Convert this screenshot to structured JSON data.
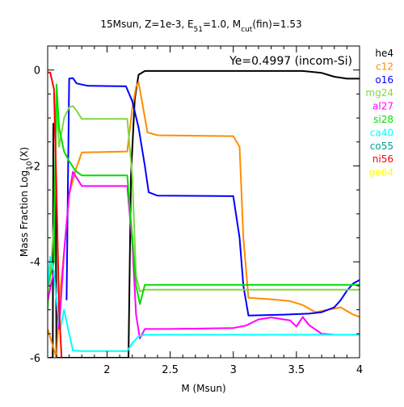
{
  "chart_data": {
    "type": "line",
    "title_parts": [
      "15Msun, Z=1e-3, E",
      "51",
      "=1.0, M",
      "cut",
      "(fin)=1.53"
    ],
    "xlabel": "M (Msun)",
    "ylabel_parts": [
      "Mass Fraction Log",
      "10",
      "(X)"
    ],
    "annotation": "Ye=0.4997 (incom-Si)",
    "xlim": [
      1.53,
      4.0
    ],
    "ylim": [
      -6,
      0.5
    ],
    "xticks": [
      {
        "value": 2,
        "label": "2"
      },
      {
        "value": 2.5,
        "label": "2.5"
      },
      {
        "value": 3,
        "label": "3"
      },
      {
        "value": 3.5,
        "label": "3.5"
      },
      {
        "value": 4,
        "label": "4"
      }
    ],
    "yticks": [
      {
        "value": 0,
        "label": "0"
      },
      {
        "value": -2,
        "label": "-2"
      },
      {
        "value": -4,
        "label": "-4"
      },
      {
        "value": -6,
        "label": "-6"
      }
    ],
    "legend_position": "right, outside plot",
    "series": [
      {
        "name": "he4",
        "color": "#000000",
        "points": [
          [
            1.53,
            -6
          ],
          [
            1.57,
            -6
          ],
          [
            1.575,
            -1.12
          ],
          [
            1.59,
            -1.12
          ],
          [
            1.6,
            -6
          ],
          [
            2.17,
            -6
          ],
          [
            2.19,
            -2.2
          ],
          [
            2.22,
            -0.6
          ],
          [
            2.25,
            -0.1
          ],
          [
            2.3,
            -0.02
          ],
          [
            2.5,
            -0.02
          ],
          [
            3.0,
            -0.02
          ],
          [
            3.55,
            -0.02
          ],
          [
            3.7,
            -0.06
          ],
          [
            3.8,
            -0.14
          ],
          [
            3.9,
            -0.18
          ],
          [
            4.0,
            -0.18
          ]
        ]
      },
      {
        "name": "c12",
        "color": "#ff8c00",
        "points": [
          [
            1.53,
            -5.4
          ],
          [
            1.6,
            -6
          ],
          [
            1.63,
            -4.6
          ],
          [
            1.66,
            -3.8
          ],
          [
            1.7,
            -2.6
          ],
          [
            1.75,
            -2.1
          ],
          [
            1.8,
            -1.72
          ],
          [
            2.16,
            -1.7
          ],
          [
            2.2,
            -0.8
          ],
          [
            2.23,
            -0.35
          ],
          [
            2.25,
            -0.25
          ],
          [
            2.28,
            -0.7
          ],
          [
            2.32,
            -1.3
          ],
          [
            2.4,
            -1.36
          ],
          [
            3.0,
            -1.38
          ],
          [
            3.05,
            -1.6
          ],
          [
            3.08,
            -3.5
          ],
          [
            3.12,
            -4.75
          ],
          [
            3.3,
            -4.78
          ],
          [
            3.45,
            -4.82
          ],
          [
            3.55,
            -4.9
          ],
          [
            3.65,
            -5.05
          ],
          [
            3.75,
            -5.0
          ],
          [
            3.85,
            -4.95
          ],
          [
            3.95,
            -5.1
          ],
          [
            4.0,
            -5.15
          ]
        ]
      },
      {
        "name": "o16",
        "color": "#0000ff",
        "points": [
          [
            1.68,
            -4.8
          ],
          [
            1.7,
            -0.18
          ],
          [
            1.73,
            -0.17
          ],
          [
            1.76,
            -0.28
          ],
          [
            1.85,
            -0.33
          ],
          [
            2.15,
            -0.34
          ],
          [
            2.2,
            -0.65
          ],
          [
            2.25,
            -1.2
          ],
          [
            2.3,
            -2.0
          ],
          [
            2.33,
            -2.55
          ],
          [
            2.4,
            -2.62
          ],
          [
            3.0,
            -2.63
          ],
          [
            3.05,
            -3.5
          ],
          [
            3.08,
            -4.5
          ],
          [
            3.12,
            -5.12
          ],
          [
            3.4,
            -5.1
          ],
          [
            3.6,
            -5.08
          ],
          [
            3.7,
            -5.05
          ],
          [
            3.8,
            -4.95
          ],
          [
            3.85,
            -4.8
          ],
          [
            3.9,
            -4.6
          ],
          [
            3.95,
            -4.45
          ],
          [
            4.0,
            -4.38
          ]
        ]
      },
      {
        "name": "mg24",
        "color": "#80d840",
        "points": [
          [
            1.53,
            -5.0
          ],
          [
            1.58,
            -3.2
          ],
          [
            1.6,
            -0.7
          ],
          [
            1.62,
            -1.6
          ],
          [
            1.66,
            -1.0
          ],
          [
            1.7,
            -0.78
          ],
          [
            1.73,
            -0.75
          ],
          [
            1.76,
            -0.85
          ],
          [
            1.8,
            -1.02
          ],
          [
            2.16,
            -1.02
          ],
          [
            2.2,
            -2.2
          ],
          [
            2.23,
            -4.3
          ],
          [
            2.26,
            -4.62
          ],
          [
            2.3,
            -4.58
          ],
          [
            4.0,
            -4.58
          ]
        ]
      },
      {
        "name": "al27",
        "color": "#ff00ff",
        "points": [
          [
            1.53,
            -4.8
          ],
          [
            1.58,
            -4.2
          ],
          [
            1.62,
            -5.4
          ],
          [
            1.66,
            -3.8
          ],
          [
            1.7,
            -2.6
          ],
          [
            1.73,
            -2.12
          ],
          [
            1.76,
            -2.25
          ],
          [
            1.8,
            -2.42
          ],
          [
            2.16,
            -2.42
          ],
          [
            2.2,
            -3.6
          ],
          [
            2.23,
            -5.1
          ],
          [
            2.26,
            -5.6
          ],
          [
            2.3,
            -5.4
          ],
          [
            2.5,
            -5.4
          ],
          [
            3.0,
            -5.38
          ],
          [
            3.1,
            -5.33
          ],
          [
            3.2,
            -5.2
          ],
          [
            3.3,
            -5.16
          ],
          [
            3.45,
            -5.22
          ],
          [
            3.5,
            -5.35
          ],
          [
            3.55,
            -5.15
          ],
          [
            3.6,
            -5.32
          ],
          [
            3.7,
            -5.5
          ],
          [
            3.8,
            -5.52
          ],
          [
            4.0,
            -5.52
          ]
        ]
      },
      {
        "name": "si28",
        "color": "#00dd00",
        "points": [
          [
            1.53,
            -4.5
          ],
          [
            1.58,
            -4.0
          ],
          [
            1.6,
            -0.3
          ],
          [
            1.62,
            -1.2
          ],
          [
            1.66,
            -1.7
          ],
          [
            1.7,
            -1.9
          ],
          [
            1.75,
            -2.1
          ],
          [
            1.8,
            -2.2
          ],
          [
            2.16,
            -2.2
          ],
          [
            2.2,
            -3.5
          ],
          [
            2.23,
            -4.5
          ],
          [
            2.26,
            -4.88
          ],
          [
            2.3,
            -4.48
          ],
          [
            4.0,
            -4.48
          ]
        ]
      },
      {
        "name": "ca40",
        "color": "#00ffff",
        "points": [
          [
            1.53,
            -4.5
          ],
          [
            1.55,
            -3.9
          ],
          [
            1.58,
            -4.2
          ],
          [
            1.6,
            -4.8
          ],
          [
            1.63,
            -5.4
          ],
          [
            1.66,
            -5.0
          ],
          [
            1.7,
            -5.5
          ],
          [
            1.73,
            -5.85
          ],
          [
            1.8,
            -5.86
          ],
          [
            2.16,
            -5.86
          ],
          [
            2.2,
            -5.7
          ],
          [
            2.25,
            -5.55
          ],
          [
            2.3,
            -5.52
          ],
          [
            3.0,
            -5.52
          ],
          [
            4.0,
            -5.52
          ]
        ]
      },
      {
        "name": "co55",
        "color": "#00a08c",
        "points": []
      },
      {
        "name": "ni56",
        "color": "#ff0000",
        "points": [
          [
            1.53,
            -0.05
          ],
          [
            1.55,
            -0.05
          ],
          [
            1.58,
            -0.4
          ],
          [
            1.6,
            -2.5
          ],
          [
            1.62,
            -5.0
          ],
          [
            1.64,
            -6
          ]
        ]
      },
      {
        "name": "ge64",
        "color": "#ffff00",
        "points": [
          [
            1.53,
            -6
          ],
          [
            1.535,
            -5.98
          ]
        ]
      }
    ]
  }
}
